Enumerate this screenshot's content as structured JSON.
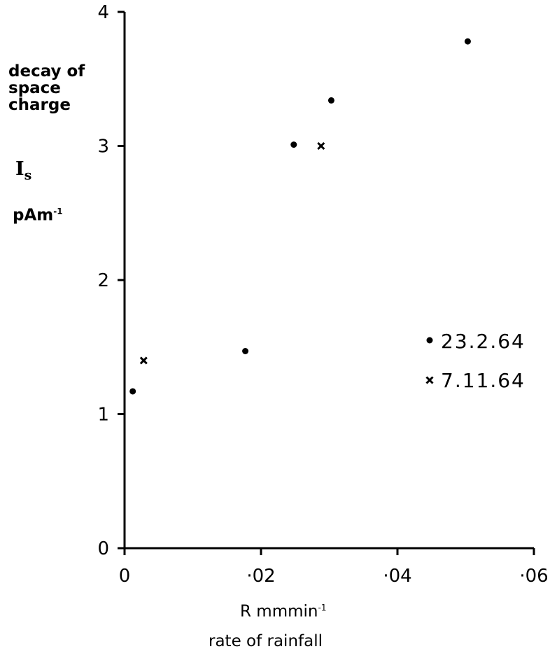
{
  "chart_data": {
    "type": "scatter",
    "y_title_lines": [
      "decay of",
      "space",
      "charge"
    ],
    "y_symbol": "I",
    "y_symbol_sub": "s",
    "y_unit": "pAm",
    "y_unit_sup": "-1",
    "x_symbol_unit": "R mmmin",
    "x_symbol_unit_sup": "-1",
    "x_title": "rate of rainfall",
    "xlim": [
      0,
      0.06
    ],
    "ylim": [
      0,
      4
    ],
    "x_ticks": [
      0,
      0.02,
      0.04,
      0.06
    ],
    "x_tick_labels": [
      "0",
      "·02",
      "·04",
      "·06"
    ],
    "y_ticks": [
      0,
      1,
      2,
      3,
      4
    ],
    "y_tick_labels": [
      "0",
      "1",
      "2",
      "3",
      "4"
    ],
    "legend_position": "right",
    "series": [
      {
        "name": "23.2.64",
        "marker": "dot",
        "points": [
          {
            "x": 0.0012,
            "y": 1.17
          },
          {
            "x": 0.0177,
            "y": 1.47
          },
          {
            "x": 0.0248,
            "y": 3.01
          },
          {
            "x": 0.0303,
            "y": 3.34
          },
          {
            "x": 0.0503,
            "y": 3.78
          }
        ]
      },
      {
        "name": "7.11.64",
        "marker": "cross",
        "points": [
          {
            "x": 0.0028,
            "y": 1.4
          },
          {
            "x": 0.0288,
            "y": 3.0
          }
        ]
      }
    ]
  }
}
